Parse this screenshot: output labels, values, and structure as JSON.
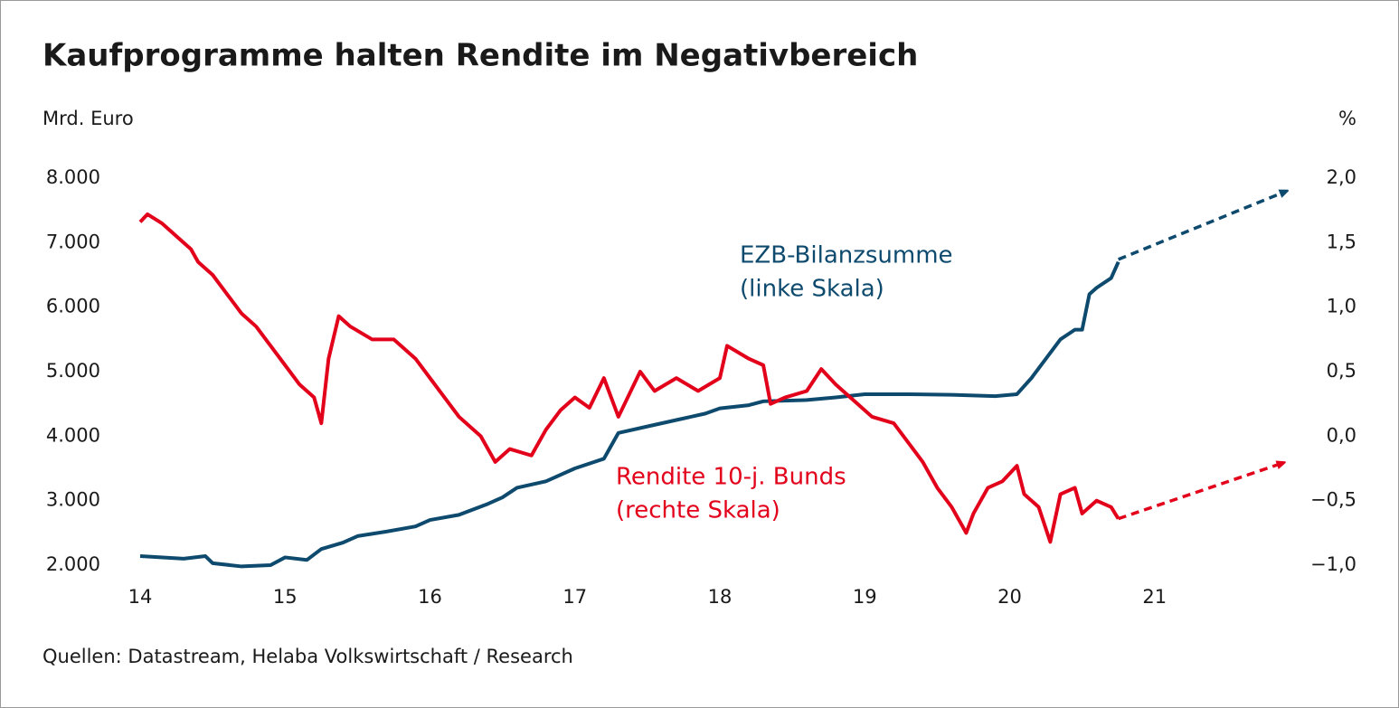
{
  "chart_data": {
    "type": "line",
    "title": "Kaufprogramme halten Rendite im Negativbereich",
    "y_label": "Mrd. Euro",
    "y2_label": "%",
    "source": "Quellen: Datastream, Helaba Volkswirtschaft / Research",
    "xlim": [
      14,
      21.9
    ],
    "xticks": [
      14,
      15,
      16,
      17,
      18,
      19,
      20,
      21
    ],
    "ylim": [
      2000,
      8000
    ],
    "yticks": [
      {
        "value": 2000,
        "label": "2.000"
      },
      {
        "value": 3000,
        "label": "3.000"
      },
      {
        "value": 4000,
        "label": "4.000"
      },
      {
        "value": 5000,
        "label": "5.000"
      },
      {
        "value": 6000,
        "label": "6.000"
      },
      {
        "value": 7000,
        "label": "7.000"
      },
      {
        "value": 8000,
        "label": "8.000"
      }
    ],
    "y2lim": [
      -1,
      2
    ],
    "y2ticks": [
      {
        "value": -1,
        "label": "−1,0"
      },
      {
        "value": -0.5,
        "label": "−0,5"
      },
      {
        "value": 0,
        "label": "0,0"
      },
      {
        "value": 0.5,
        "label": "0,5"
      },
      {
        "value": 1,
        "label": "1,0"
      },
      {
        "value": 1.5,
        "label": "1,5"
      },
      {
        "value": 2,
        "label": "2,0"
      }
    ],
    "series": [
      {
        "name": "EZB-Bilanzsumme",
        "scale_label": "(linke Skala)",
        "color": "#0e4a6e",
        "x": [
          14.0,
          14.3,
          14.45,
          14.5,
          14.7,
          14.9,
          15.0,
          15.15,
          15.25,
          15.4,
          15.5,
          15.7,
          15.9,
          16.0,
          16.2,
          16.4,
          16.5,
          16.6,
          16.8,
          17.0,
          17.2,
          17.25,
          17.3,
          17.5,
          17.7,
          17.9,
          18.0,
          18.2,
          18.3,
          18.6,
          18.8,
          19.0,
          19.3,
          19.6,
          19.9,
          20.05,
          20.15,
          20.25,
          20.35,
          20.45,
          20.5,
          20.55,
          20.6,
          20.7,
          20.75
        ],
        "values": [
          2140,
          2100,
          2140,
          2030,
          1980,
          2000,
          2120,
          2080,
          2250,
          2350,
          2450,
          2520,
          2600,
          2700,
          2780,
          2950,
          3050,
          3200,
          3300,
          3500,
          3650,
          3850,
          4050,
          4150,
          4250,
          4350,
          4430,
          4480,
          4540,
          4560,
          4600,
          4650,
          4650,
          4640,
          4620,
          4650,
          4900,
          5200,
          5500,
          5650,
          5650,
          6200,
          6300,
          6450,
          6700
        ],
        "projection": {
          "x": [
            20.75,
            21.9
          ],
          "values": [
            6740,
            7790
          ]
        }
      },
      {
        "name": "Rendite 10-j. Bunds",
        "scale_label": "(rechte Skala)",
        "color": "#e2001a",
        "axis": "y2",
        "x": [
          14.0,
          14.05,
          14.15,
          14.25,
          14.35,
          14.4,
          14.5,
          14.6,
          14.7,
          14.8,
          14.9,
          15.0,
          15.1,
          15.2,
          15.25,
          15.3,
          15.37,
          15.45,
          15.6,
          15.75,
          15.9,
          16.0,
          16.1,
          16.2,
          16.35,
          16.45,
          16.55,
          16.7,
          16.8,
          16.9,
          17.0,
          17.1,
          17.2,
          17.3,
          17.45,
          17.55,
          17.7,
          17.85,
          18.0,
          18.05,
          18.2,
          18.3,
          18.35,
          18.45,
          18.6,
          18.7,
          18.8,
          18.95,
          19.05,
          19.2,
          19.3,
          19.4,
          19.5,
          19.6,
          19.7,
          19.75,
          19.85,
          19.95,
          20.05,
          20.1,
          20.2,
          20.28,
          20.35,
          20.45,
          20.5,
          20.6,
          20.7,
          20.75
        ],
        "values": [
          1.66,
          1.72,
          1.65,
          1.55,
          1.45,
          1.35,
          1.25,
          1.1,
          0.95,
          0.85,
          0.7,
          0.55,
          0.4,
          0.3,
          0.1,
          0.6,
          0.93,
          0.85,
          0.75,
          0.75,
          0.6,
          0.45,
          0.3,
          0.15,
          0.0,
          -0.2,
          -0.1,
          -0.15,
          0.05,
          0.2,
          0.3,
          0.22,
          0.45,
          0.15,
          0.5,
          0.35,
          0.45,
          0.35,
          0.45,
          0.7,
          0.6,
          0.55,
          0.25,
          0.3,
          0.35,
          0.52,
          0.4,
          0.25,
          0.15,
          0.1,
          -0.05,
          -0.2,
          -0.4,
          -0.55,
          -0.75,
          -0.6,
          -0.4,
          -0.35,
          -0.23,
          -0.45,
          -0.55,
          -0.82,
          -0.45,
          -0.4,
          -0.6,
          -0.5,
          -0.55,
          -0.64
        ],
        "projection": {
          "x": [
            20.75,
            21.88
          ],
          "values": [
            -0.64,
            -0.21
          ]
        }
      }
    ]
  }
}
